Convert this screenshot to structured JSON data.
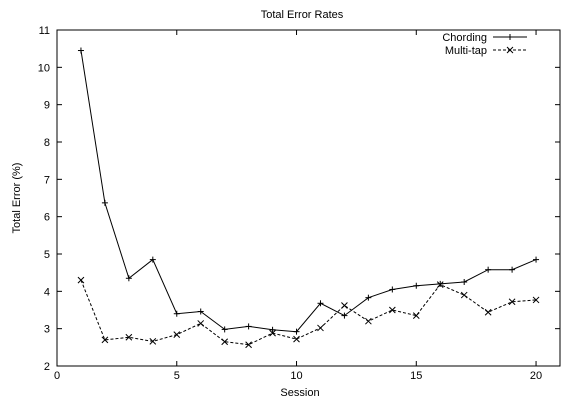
{
  "chart_data": {
    "type": "line",
    "title": "Total Error Rates",
    "xlabel": "Session",
    "ylabel": "Total Error (%)",
    "xlim": [
      0,
      21
    ],
    "ylim": [
      2,
      11
    ],
    "x_ticks": [
      0,
      5,
      10,
      15,
      20
    ],
    "y_ticks": [
      2,
      3,
      4,
      5,
      6,
      7,
      8,
      9,
      10,
      11
    ],
    "grid": false,
    "legend_position": "top-right",
    "x": [
      1,
      2,
      3,
      4,
      5,
      6,
      7,
      8,
      9,
      10,
      11,
      12,
      13,
      14,
      15,
      16,
      17,
      18,
      19,
      20
    ],
    "series": [
      {
        "name": "Chording",
        "line_style": "solid",
        "marker": "plus",
        "values": [
          10.45,
          6.37,
          4.35,
          4.85,
          3.4,
          3.46,
          2.98,
          3.06,
          2.97,
          2.92,
          3.68,
          3.35,
          3.83,
          4.05,
          4.15,
          4.2,
          4.25,
          4.58,
          4.58,
          4.85
        ]
      },
      {
        "name": "Multi-tap",
        "line_style": "dashed",
        "marker": "cross",
        "values": [
          4.3,
          2.7,
          2.77,
          2.66,
          2.84,
          3.14,
          2.65,
          2.57,
          2.88,
          2.72,
          3.02,
          3.62,
          3.2,
          3.5,
          3.35,
          4.18,
          3.9,
          3.44,
          3.72,
          3.77
        ]
      }
    ]
  }
}
